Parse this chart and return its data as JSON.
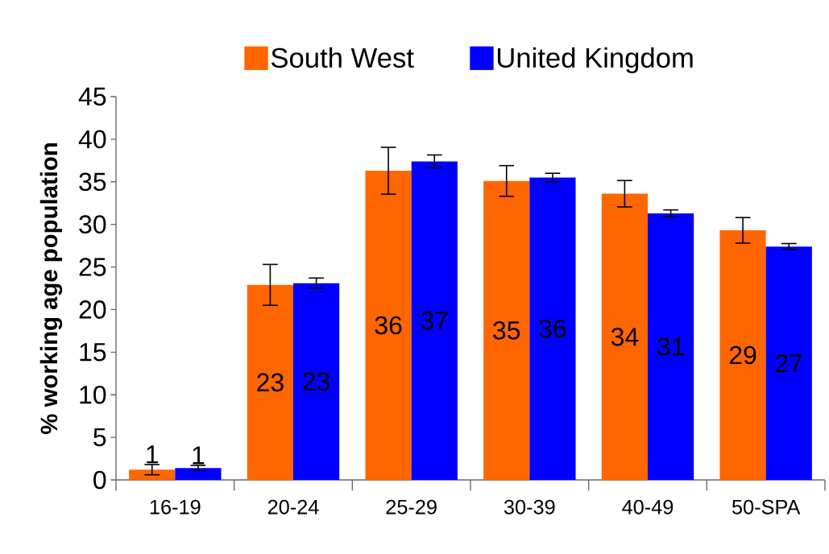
{
  "chart_data": {
    "type": "bar",
    "ylabel": "% working age population",
    "categories": [
      "16-19",
      "20-24",
      "25-29",
      "30-39",
      "40-49",
      "50-SPA"
    ],
    "series": [
      {
        "name": "South West",
        "color": "#ff6600",
        "values": [
          1.2,
          22.9,
          36.3,
          35.1,
          33.6,
          29.3
        ],
        "errors": [
          0.6,
          2.4,
          2.75,
          1.8,
          1.55,
          1.5
        ],
        "value_labels": [
          "1",
          "23",
          "36",
          "35",
          "34",
          "29"
        ]
      },
      {
        "name": "United Kingdom",
        "color": "#0000ff",
        "values": [
          1.4,
          23.1,
          37.4,
          35.5,
          31.3,
          27.4
        ],
        "errors": [
          0.3,
          0.6,
          0.75,
          0.5,
          0.4,
          0.35
        ],
        "value_labels": [
          "1",
          "23",
          "37",
          "36",
          "31",
          "27"
        ]
      }
    ],
    "ylim": [
      0,
      45
    ],
    "yticks": [
      0,
      5,
      10,
      15,
      20,
      25,
      30,
      35,
      40,
      45
    ],
    "legend": "top"
  }
}
